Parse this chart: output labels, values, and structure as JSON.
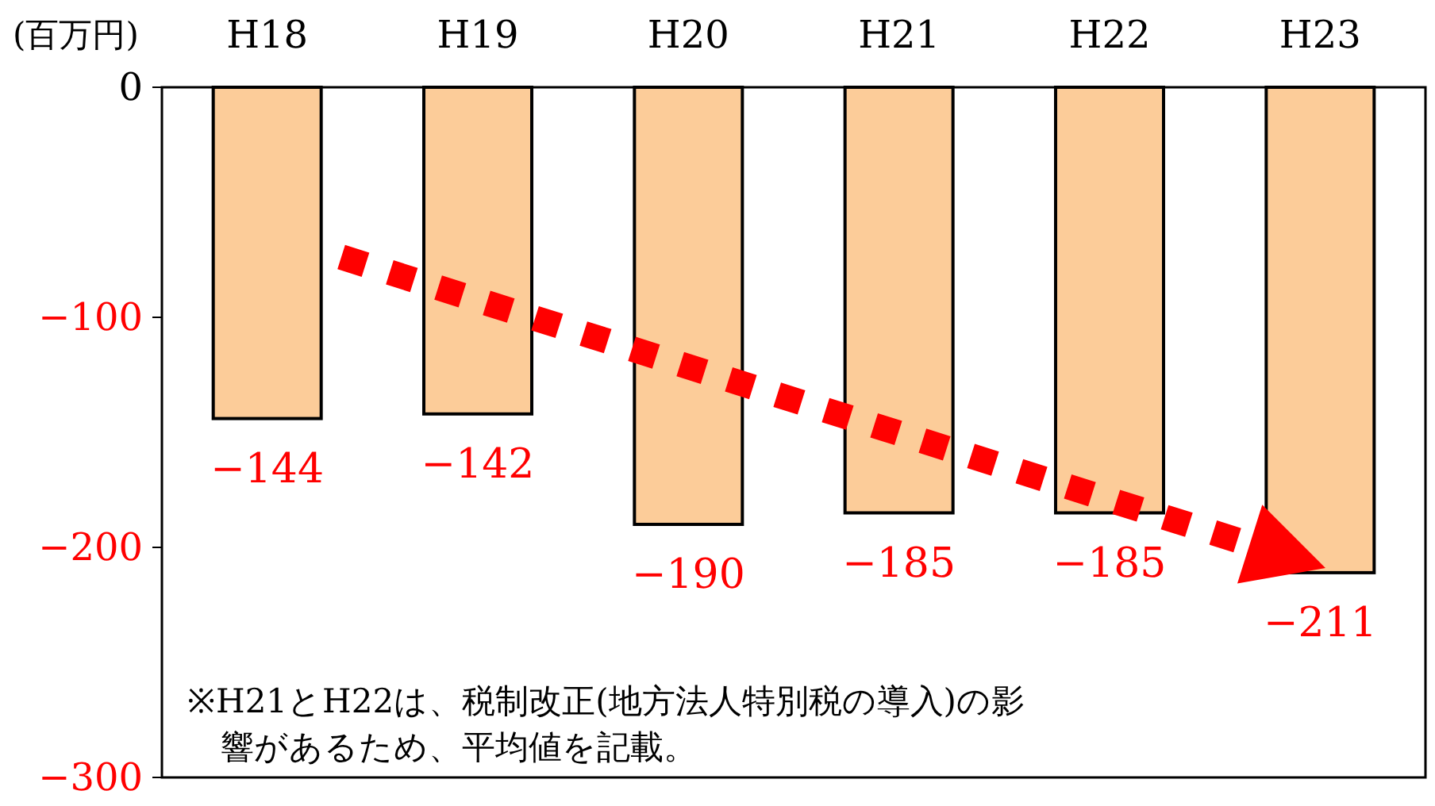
{
  "chart_data": {
    "type": "bar",
    "ylabel": "(百万円)",
    "categories": [
      "H18",
      "H19",
      "H20",
      "H21",
      "H22",
      "H23"
    ],
    "values": [
      -144,
      -142,
      -190,
      -185,
      -185,
      -211
    ],
    "color": "#fccc99",
    "ylim": [
      -300,
      0
    ],
    "yticks": [
      -300,
      -200,
      -100,
      0
    ],
    "data_labels": true,
    "grid": false,
    "annotations": [
      "※H21とH22は、税制改正(地方法人特別税の導入)の影響があるため、平均値を記載。"
    ]
  }
}
